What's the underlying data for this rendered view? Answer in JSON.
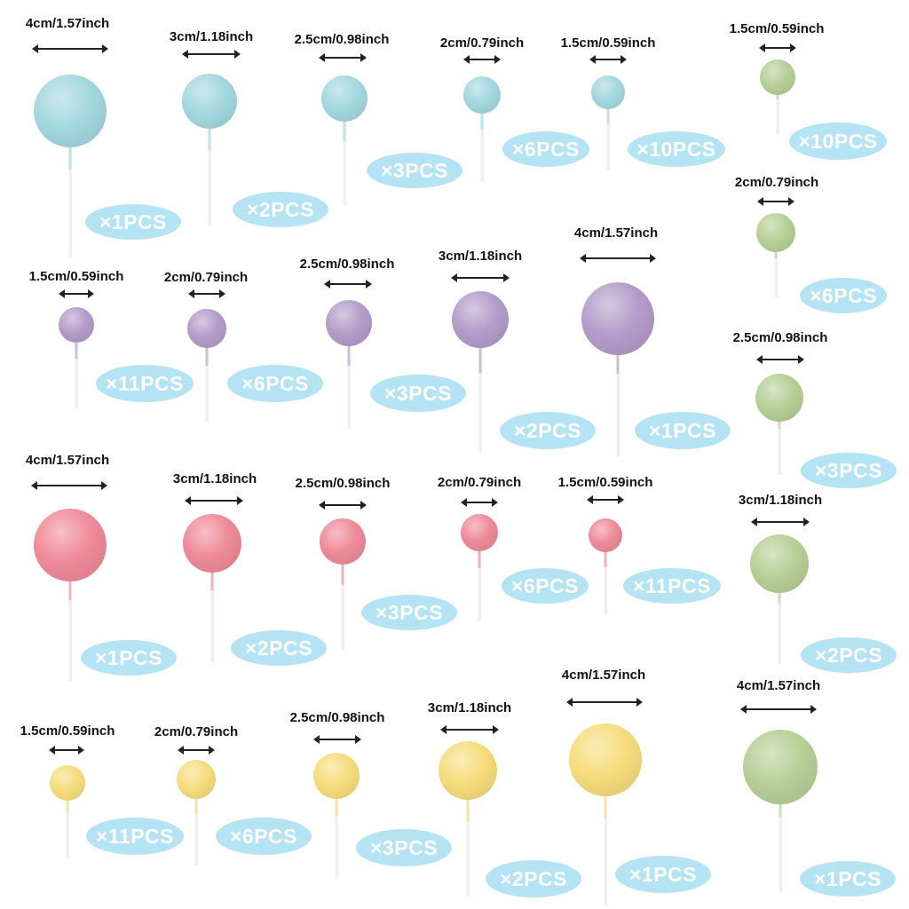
{
  "colors": {
    "blue": "#a3d7df",
    "purple": "#b49cc9",
    "pink": "#ef8a99",
    "yellow": "#f6dc7c",
    "green": "#b6cf96",
    "badge": "#b4e3f3"
  },
  "toppers": [
    {
      "label": "4cm/1.57inch",
      "qty": "×1PCS",
      "color": "blue"
    },
    {
      "label": "3cm/1.18inch",
      "qty": "×2PCS",
      "color": "blue"
    },
    {
      "label": "2.5cm/0.98inch",
      "qty": "×3PCS",
      "color": "blue"
    },
    {
      "label": "2cm/0.79inch",
      "qty": "×6PCS",
      "color": "blue"
    },
    {
      "label": "1.5cm/0.59inch",
      "qty": "×10PCS",
      "color": "blue"
    },
    {
      "label": "1.5cm/0.59inch",
      "qty": "×11PCS",
      "color": "purple"
    },
    {
      "label": "2cm/0.79inch",
      "qty": "×6PCS",
      "color": "purple"
    },
    {
      "label": "2.5cm/0.98inch",
      "qty": "×3PCS",
      "color": "purple"
    },
    {
      "label": "3cm/1.18inch",
      "qty": "×2PCS",
      "color": "purple"
    },
    {
      "label": "4cm/1.57inch",
      "qty": "×1PCS",
      "color": "purple"
    },
    {
      "label": "4cm/1.57inch",
      "qty": "×1PCS",
      "color": "pink"
    },
    {
      "label": "3cm/1.18inch",
      "qty": "×2PCS",
      "color": "pink"
    },
    {
      "label": "2.5cm/0.98inch",
      "qty": "×3PCS",
      "color": "pink"
    },
    {
      "label": "2cm/0.79inch",
      "qty": "×6PCS",
      "color": "pink"
    },
    {
      "label": "1.5cm/0.59inch",
      "qty": "×11PCS",
      "color": "pink"
    },
    {
      "label": "1.5cm/0.59inch",
      "qty": "×11PCS",
      "color": "yellow"
    },
    {
      "label": "2cm/0.79inch",
      "qty": "×6PCS",
      "color": "yellow"
    },
    {
      "label": "2.5cm/0.98inch",
      "qty": "×3PCS",
      "color": "yellow"
    },
    {
      "label": "3cm/1.18inch",
      "qty": "×2PCS",
      "color": "yellow"
    },
    {
      "label": "4cm/1.57inch",
      "qty": "×1PCS",
      "color": "yellow"
    },
    {
      "label": "1.5cm/0.59inch",
      "qty": "×10PCS",
      "color": "green"
    },
    {
      "label": "2cm/0.79inch",
      "qty": "×6PCS",
      "color": "green"
    },
    {
      "label": "2.5cm/0.98inch",
      "qty": "×3PCS",
      "color": "green"
    },
    {
      "label": "3cm/1.18inch",
      "qty": "×2PCS",
      "color": "green"
    },
    {
      "label": "4cm/1.57inch",
      "qty": "×1PCS",
      "color": "green"
    }
  ]
}
